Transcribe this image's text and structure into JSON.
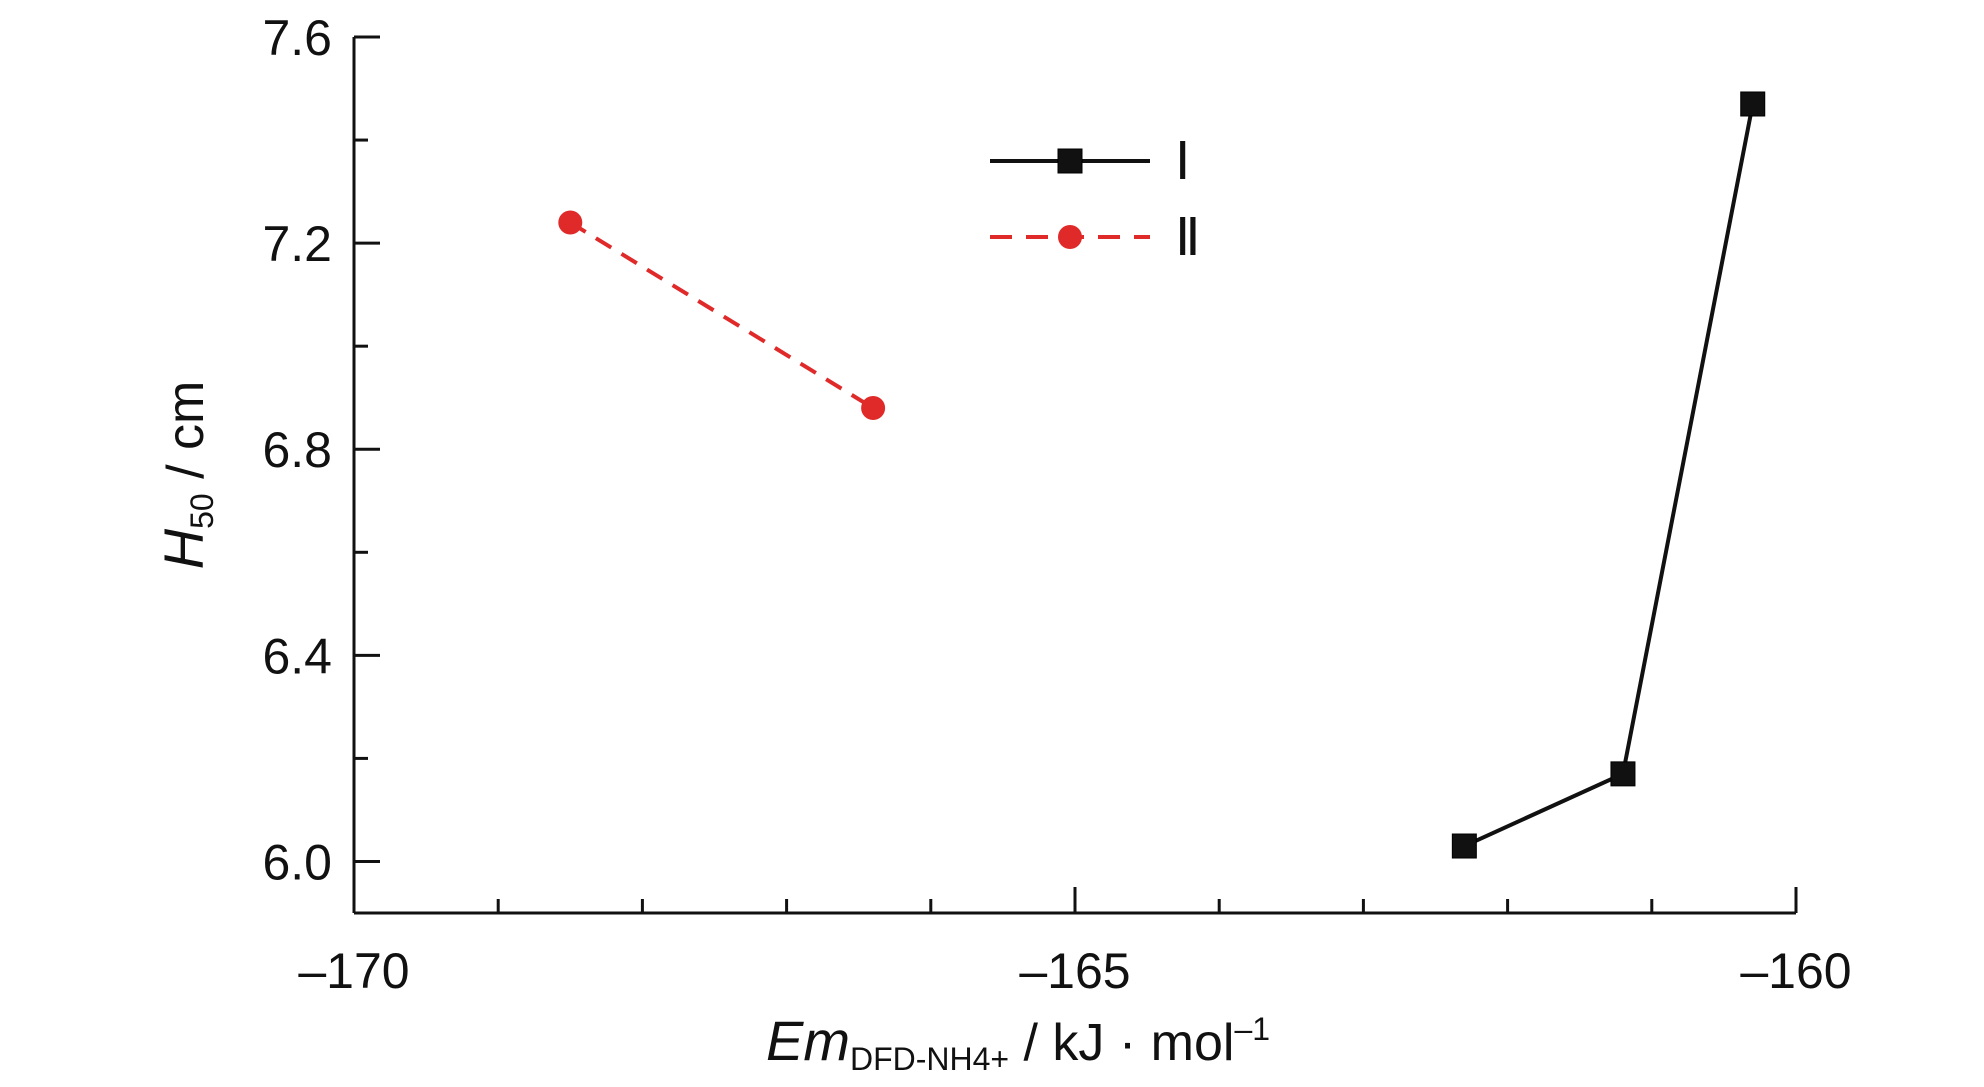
{
  "chart_data": {
    "type": "line",
    "x_axis": {
      "label_main": "Em",
      "label_sub": "DFD-NH4+",
      "label_rest": " / kJ · mol",
      "label_sup": "–1",
      "range": [
        -170,
        -160
      ],
      "ticks": [
        -170,
        -165,
        -160
      ],
      "tick_labels": [
        "–170",
        "–165",
        "–160"
      ],
      "minor_step": 1
    },
    "y_axis": {
      "label_main": "H",
      "label_sub": "50",
      "label_rest": " / cm",
      "range": [
        5.9,
        7.6
      ],
      "ticks": [
        6.0,
        6.4,
        6.8,
        7.2,
        7.6
      ],
      "tick_labels": [
        "6.0",
        "6.4",
        "6.8",
        "7.2",
        "7.6"
      ],
      "minor_step": 0.2
    },
    "grid": false,
    "legend_position": "top-center",
    "series": [
      {
        "name": "Ⅰ",
        "color": "#111111",
        "marker": "square",
        "line": "solid",
        "points": [
          [
            -162.3,
            6.03
          ],
          [
            -161.2,
            6.17
          ],
          [
            -160.3,
            7.47
          ]
        ]
      },
      {
        "name": "Ⅱ",
        "color": "#e02a2a",
        "marker": "circle",
        "line": "dashed",
        "points": [
          [
            -168.5,
            7.24
          ],
          [
            -166.4,
            6.88
          ]
        ]
      }
    ]
  }
}
